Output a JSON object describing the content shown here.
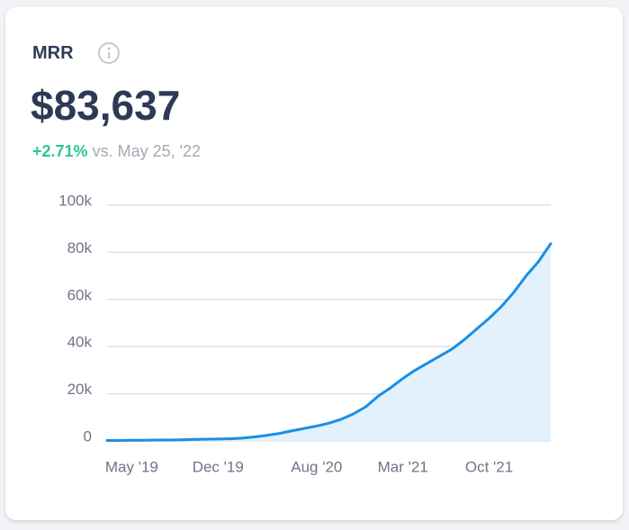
{
  "header": {
    "title": "MRR",
    "value": "$83,637",
    "change": "+2.71%",
    "comparison": "vs. May 25, '22"
  },
  "chart_data": {
    "type": "line",
    "categories": [
      null,
      null,
      "May '19",
      null,
      null,
      null,
      null,
      null,
      null,
      "Dec '19",
      null,
      null,
      null,
      null,
      null,
      null,
      null,
      "Aug '20",
      null,
      null,
      null,
      null,
      null,
      null,
      "Mar '21",
      null,
      null,
      null,
      null,
      null,
      null,
      "Oct '21",
      null,
      null,
      null,
      null,
      null
    ],
    "series": [
      {
        "color": "#1a8fe3",
        "values": [
          200,
          200,
          300,
          300,
          400,
          400,
          500,
          600,
          700,
          800,
          900,
          1200,
          1700,
          2400,
          3200,
          4300,
          5300,
          6300,
          7500,
          9200,
          11500,
          14500,
          19000,
          22500,
          26500,
          30000,
          33000,
          36000,
          39000,
          43000,
          47500,
          52000,
          57000,
          63000,
          70000,
          76000,
          83637
        ]
      }
    ],
    "area_color": "#e3f1fc",
    "ylim": [
      0,
      100000
    ],
    "yticks": [
      0,
      {
        "value": 20000,
        "label": "20k"
      },
      {
        "value": 40000,
        "label": "40k"
      },
      {
        "value": 60000,
        "label": "60k"
      },
      {
        "value": 80000,
        "label": "80k"
      },
      {
        "value": 100000,
        "label": "100k"
      }
    ],
    "grid": true
  }
}
